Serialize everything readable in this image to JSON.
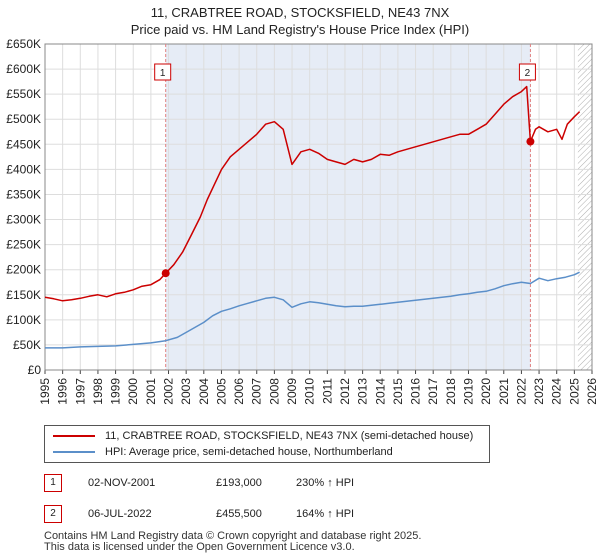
{
  "title_lines": [
    "11, CRABTREE ROAD, STOCKSFIELD, NE43 7NX",
    "Price paid vs. HM Land Registry's House Price Index (HPI)"
  ],
  "colors": {
    "red": "#cc0000",
    "blue": "#5b8fc9",
    "band": "#dde6f3",
    "grid": "#dddddd",
    "vline": "#e08080"
  },
  "legend": {
    "red_label": "11, CRABTREE ROAD, STOCKSFIELD, NE43 7NX (semi-detached house)",
    "blue_label": "HPI: Average price, semi-detached house, Northumberland"
  },
  "sales": [
    {
      "num": "1",
      "date": "02-NOV-2001",
      "price": "£193,000",
      "hpi": "230% ↑ HPI"
    },
    {
      "num": "2",
      "date": "06-JUL-2022",
      "price": "£455,500",
      "hpi": "164% ↑ HPI"
    }
  ],
  "footer": {
    "line1": "Contains HM Land Registry data © Crown copyright and database right 2025.",
    "line2": "This data is licensed under the Open Government Licence v3.0."
  },
  "chart_data": {
    "type": "line",
    "xlim": [
      1995,
      2026
    ],
    "ylim": [
      0,
      650000
    ],
    "x_ticks": [
      1995,
      1996,
      1997,
      1998,
      1999,
      2000,
      2001,
      2002,
      2003,
      2004,
      2005,
      2006,
      2007,
      2008,
      2009,
      2010,
      2011,
      2012,
      2013,
      2014,
      2015,
      2016,
      2017,
      2018,
      2019,
      2020,
      2021,
      2022,
      2023,
      2024,
      2025,
      2026
    ],
    "y_ticks": [
      {
        "value": 0,
        "label": "£0"
      },
      {
        "value": 50000,
        "label": "£50K"
      },
      {
        "value": 100000,
        "label": "£100K"
      },
      {
        "value": 150000,
        "label": "£150K"
      },
      {
        "value": 200000,
        "label": "£200K"
      },
      {
        "value": 250000,
        "label": "£250K"
      },
      {
        "value": 300000,
        "label": "£300K"
      },
      {
        "value": 350000,
        "label": "£350K"
      },
      {
        "value": 400000,
        "label": "£400K"
      },
      {
        "value": 450000,
        "label": "£450K"
      },
      {
        "value": 500000,
        "label": "£500K"
      },
      {
        "value": 550000,
        "label": "£550K"
      },
      {
        "value": 600000,
        "label": "£600K"
      },
      {
        "value": 650000,
        "label": "£650K"
      }
    ],
    "grid": true,
    "shaded_region": [
      2001.84,
      2022.51
    ],
    "forecast_from": 2025.2,
    "series": [
      {
        "name": "11, CRABTREE ROAD, STOCKSFIELD, NE43 7NX (semi-detached house)",
        "color": "#cc0000",
        "points": [
          [
            1995.0,
            145000
          ],
          [
            1995.5,
            142000
          ],
          [
            1996.0,
            138000
          ],
          [
            1996.5,
            140000
          ],
          [
            1997.0,
            143000
          ],
          [
            1997.5,
            147000
          ],
          [
            1998.0,
            150000
          ],
          [
            1998.5,
            146000
          ],
          [
            1999.0,
            152000
          ],
          [
            1999.5,
            155000
          ],
          [
            2000.0,
            160000
          ],
          [
            2000.5,
            167000
          ],
          [
            2001.0,
            170000
          ],
          [
            2001.5,
            180000
          ],
          [
            2001.84,
            193000
          ],
          [
            2002.3,
            210000
          ],
          [
            2002.8,
            235000
          ],
          [
            2003.3,
            270000
          ],
          [
            2003.8,
            305000
          ],
          [
            2004.2,
            340000
          ],
          [
            2004.6,
            370000
          ],
          [
            2005.0,
            400000
          ],
          [
            2005.5,
            425000
          ],
          [
            2006.0,
            440000
          ],
          [
            2006.5,
            455000
          ],
          [
            2007.0,
            470000
          ],
          [
            2007.5,
            490000
          ],
          [
            2008.0,
            495000
          ],
          [
            2008.5,
            480000
          ],
          [
            2009.0,
            410000
          ],
          [
            2009.5,
            435000
          ],
          [
            2010.0,
            440000
          ],
          [
            2010.5,
            432000
          ],
          [
            2011.0,
            420000
          ],
          [
            2011.5,
            415000
          ],
          [
            2012.0,
            410000
          ],
          [
            2012.5,
            420000
          ],
          [
            2013.0,
            415000
          ],
          [
            2013.5,
            420000
          ],
          [
            2014.0,
            430000
          ],
          [
            2014.5,
            428000
          ],
          [
            2015.0,
            435000
          ],
          [
            2015.5,
            440000
          ],
          [
            2016.0,
            445000
          ],
          [
            2016.5,
            450000
          ],
          [
            2017.0,
            455000
          ],
          [
            2017.5,
            460000
          ],
          [
            2018.0,
            465000
          ],
          [
            2018.5,
            470000
          ],
          [
            2019.0,
            470000
          ],
          [
            2019.5,
            480000
          ],
          [
            2020.0,
            490000
          ],
          [
            2020.5,
            510000
          ],
          [
            2021.0,
            530000
          ],
          [
            2021.5,
            545000
          ],
          [
            2022.0,
            555000
          ],
          [
            2022.3,
            565000
          ],
          [
            2022.51,
            455500
          ],
          [
            2022.8,
            480000
          ],
          [
            2023.0,
            485000
          ],
          [
            2023.5,
            475000
          ],
          [
            2024.0,
            480000
          ],
          [
            2024.3,
            460000
          ],
          [
            2024.6,
            490000
          ],
          [
            2025.0,
            505000
          ],
          [
            2025.3,
            515000
          ]
        ]
      },
      {
        "name": "HPI: Average price, semi-detached house, Northumberland",
        "color": "#5b8fc9",
        "points": [
          [
            1995.0,
            44000
          ],
          [
            1996.0,
            44000
          ],
          [
            1997.0,
            46000
          ],
          [
            1998.0,
            47000
          ],
          [
            1999.0,
            48000
          ],
          [
            2000.0,
            51000
          ],
          [
            2001.0,
            54000
          ],
          [
            2001.84,
            58500
          ],
          [
            2002.5,
            65000
          ],
          [
            2003.0,
            75000
          ],
          [
            2003.5,
            85000
          ],
          [
            2004.0,
            95000
          ],
          [
            2004.5,
            108000
          ],
          [
            2005.0,
            117000
          ],
          [
            2005.5,
            122000
          ],
          [
            2006.0,
            128000
          ],
          [
            2006.5,
            133000
          ],
          [
            2007.0,
            138000
          ],
          [
            2007.5,
            143000
          ],
          [
            2008.0,
            145000
          ],
          [
            2008.5,
            140000
          ],
          [
            2009.0,
            125000
          ],
          [
            2009.5,
            132000
          ],
          [
            2010.0,
            136000
          ],
          [
            2010.5,
            134000
          ],
          [
            2011.0,
            131000
          ],
          [
            2011.5,
            128000
          ],
          [
            2012.0,
            126000
          ],
          [
            2012.5,
            127000
          ],
          [
            2013.0,
            127000
          ],
          [
            2013.5,
            129000
          ],
          [
            2014.0,
            131000
          ],
          [
            2014.5,
            133000
          ],
          [
            2015.0,
            135000
          ],
          [
            2015.5,
            137000
          ],
          [
            2016.0,
            139000
          ],
          [
            2016.5,
            141000
          ],
          [
            2017.0,
            143000
          ],
          [
            2017.5,
            145000
          ],
          [
            2018.0,
            147000
          ],
          [
            2018.5,
            150000
          ],
          [
            2019.0,
            152000
          ],
          [
            2019.5,
            155000
          ],
          [
            2020.0,
            157000
          ],
          [
            2020.5,
            162000
          ],
          [
            2021.0,
            168000
          ],
          [
            2021.5,
            172000
          ],
          [
            2022.0,
            175000
          ],
          [
            2022.51,
            172500
          ],
          [
            2023.0,
            183000
          ],
          [
            2023.5,
            178000
          ],
          [
            2024.0,
            182000
          ],
          [
            2024.5,
            185000
          ],
          [
            2025.0,
            190000
          ],
          [
            2025.3,
            195000
          ]
        ]
      }
    ],
    "markers": [
      {
        "label": "1",
        "x": 2001.84,
        "y": 193000
      },
      {
        "label": "2",
        "x": 2022.51,
        "y": 455500
      }
    ]
  }
}
